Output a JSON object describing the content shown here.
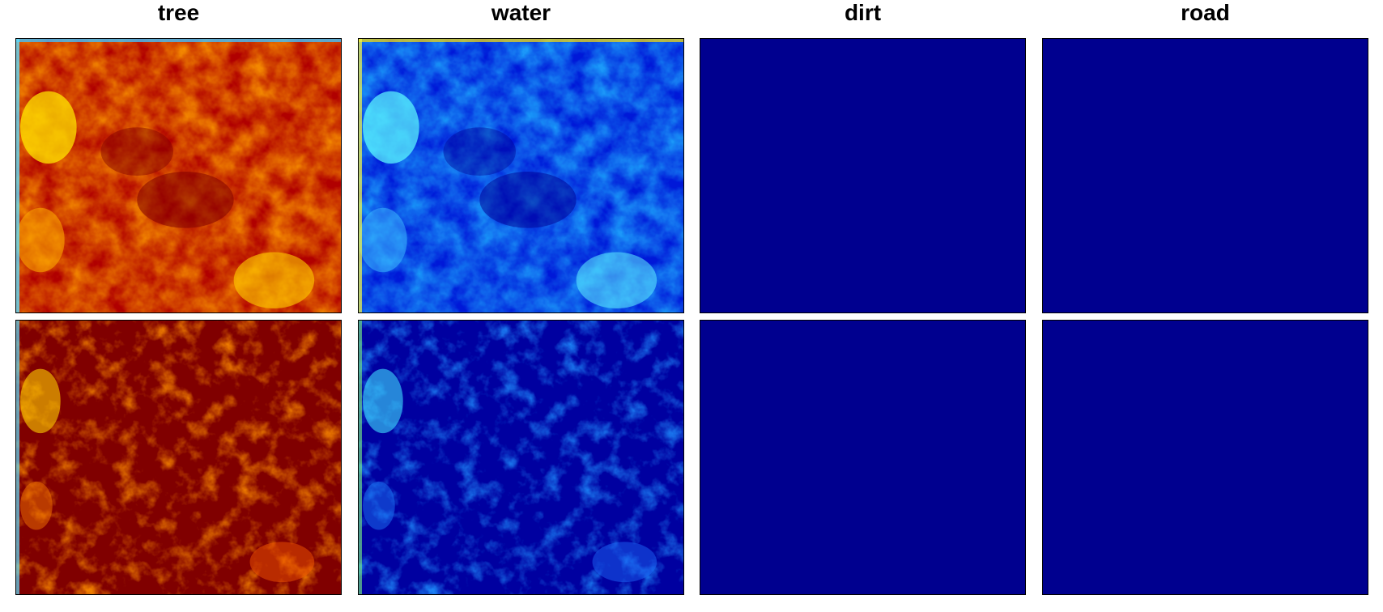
{
  "columns": [
    {
      "title": "tree"
    },
    {
      "title": "water"
    },
    {
      "title": "dirt"
    },
    {
      "title": "road"
    }
  ],
  "colormap": "jet",
  "colors": {
    "jet_dark_red": "#7f0000",
    "jet_red": "#e01000",
    "jet_orange": "#ff8000",
    "jet_yellow": "#ffe000",
    "jet_cyan": "#40ffff",
    "jet_light_blue": "#1aa0ff",
    "jet_blue": "#0020ff",
    "jet_navy": "#00008f"
  }
}
